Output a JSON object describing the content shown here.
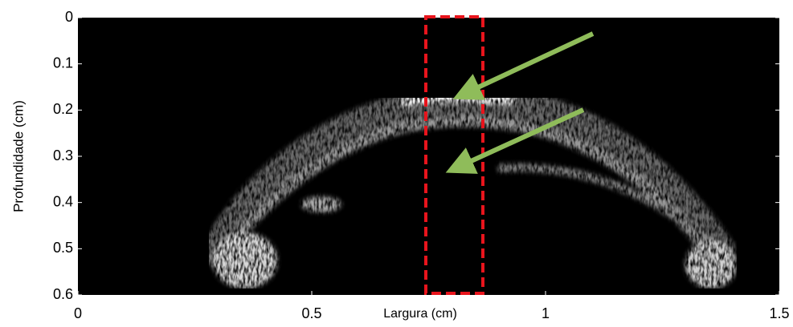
{
  "chart_data": {
    "type": "image",
    "xlabel": "Largura (cm)",
    "ylabel": "Profundidade  (cm)",
    "xlim": [
      0,
      1.5
    ],
    "xticks": [
      0,
      0.5,
      1,
      1.5
    ],
    "ylim": [
      0,
      0.6
    ],
    "yticks": [
      0,
      0.1,
      0.2,
      0.3,
      0.4,
      0.5,
      0.6
    ],
    "y_inverted": true
  }
}
